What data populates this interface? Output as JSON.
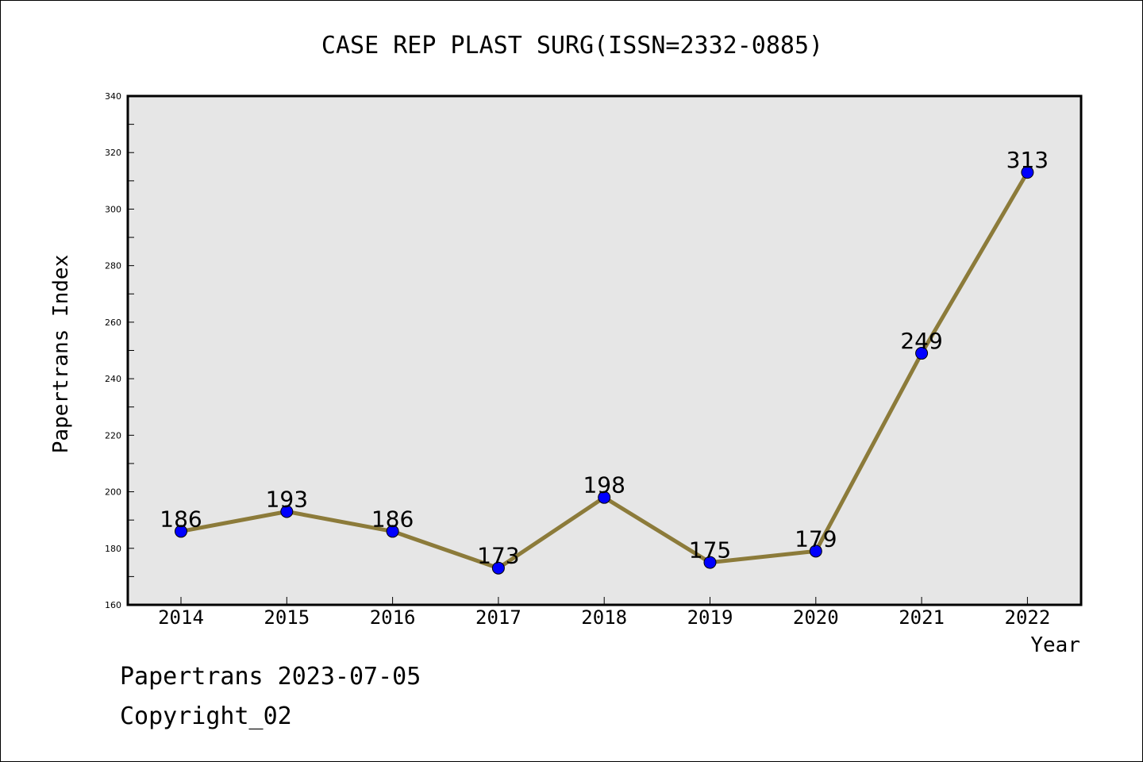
{
  "chart_data": {
    "type": "line",
    "title": "CASE REP PLAST SURG(ISSN=2332-0885)",
    "xlabel": "Year",
    "ylabel": "Papertrans Index",
    "categories": [
      "2014",
      "2015",
      "2016",
      "2017",
      "2018",
      "2019",
      "2020",
      "2021",
      "2022"
    ],
    "values": [
      186,
      193,
      186,
      173,
      198,
      175,
      179,
      249,
      313
    ],
    "data_labels": [
      "186",
      "193",
      "186",
      "173",
      "198",
      "175",
      "179",
      "249",
      "313"
    ],
    "ylim": [
      160,
      340
    ],
    "y_ticks": [
      "160",
      "180",
      "200",
      "220",
      "240",
      "260",
      "280",
      "300",
      "320",
      "340"
    ],
    "grid": false,
    "colors": {
      "line": "#8c7b3a",
      "marker": "#0000ff",
      "plot_background": "#e6e6e6"
    }
  },
  "footer": {
    "line1": "Papertrans 2023-07-05",
    "line2": "Copyright_02"
  }
}
